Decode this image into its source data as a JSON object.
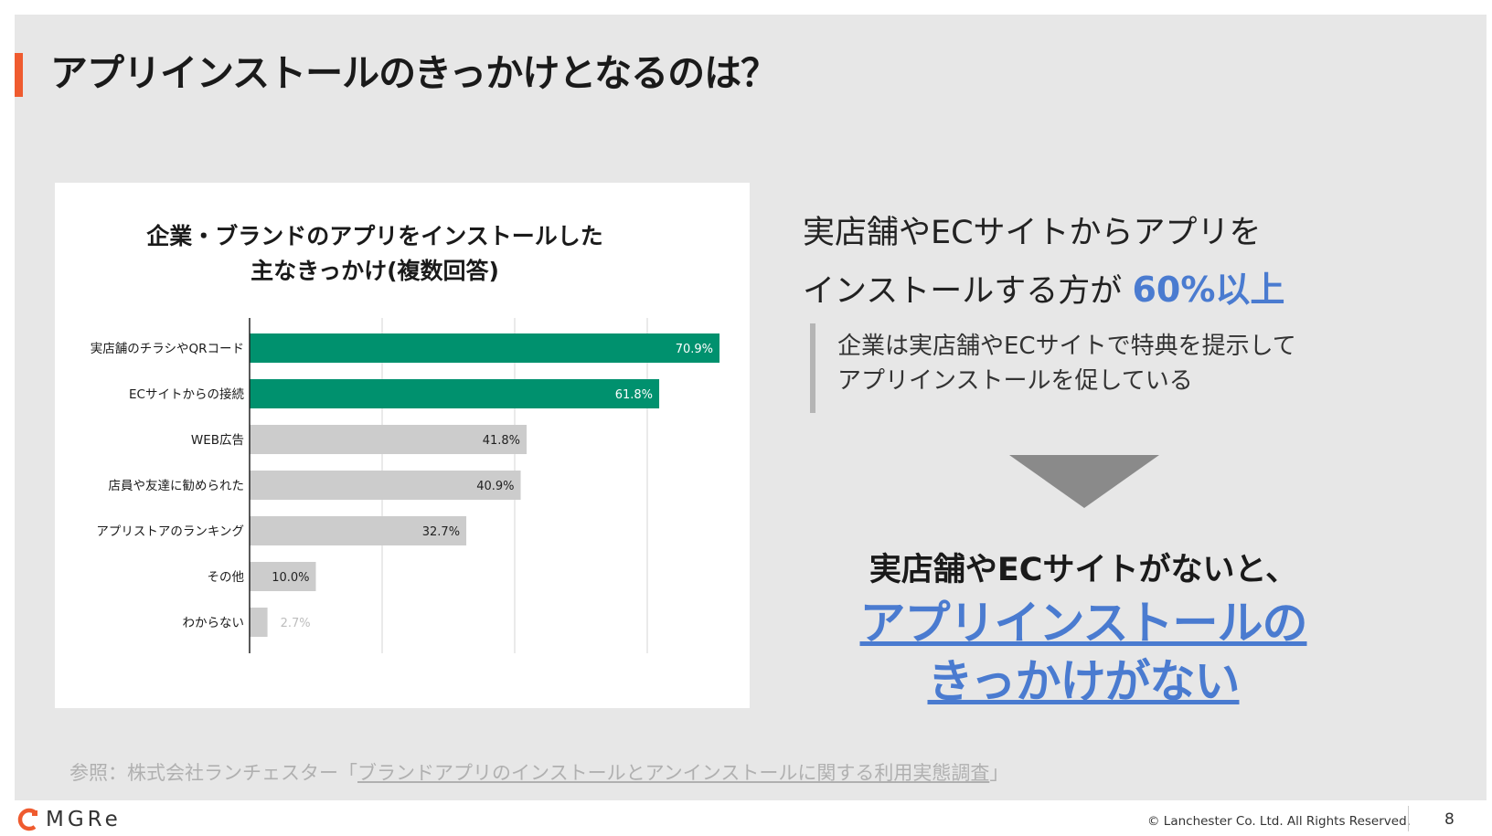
{
  "title": "アプリインストールのきっかけとなるのは？",
  "chart_data": {
    "type": "bar",
    "orientation": "horizontal",
    "title_line1": "企業・ブランドのアプリをインストールした",
    "title_line2": "主なきっかけ(複数回答)",
    "categories": [
      "実店舗のチラシやQRコード",
      "ECサイトからの接続",
      "WEB広告",
      "店員や友達に勧められた",
      "アプリストアのランキング",
      "その他",
      "わからない"
    ],
    "values": [
      70.9,
      61.8,
      41.8,
      40.9,
      32.7,
      10.0,
      2.7
    ],
    "labels": [
      "70.9%",
      "61.8%",
      "41.8%",
      "40.9%",
      "32.7%",
      "10.0%",
      "2.7%"
    ],
    "highlight": [
      true,
      true,
      false,
      false,
      false,
      false,
      false
    ],
    "xlim": [
      0,
      80
    ],
    "grid": true,
    "colors": {
      "highlight": "#00916e",
      "normal": "#cccccc"
    }
  },
  "headline": {
    "line1": "実店舗やECサイトからアプリを",
    "line2_prefix": "インストールする方が ",
    "line2_highlight": "60%以上"
  },
  "quote": {
    "line1": "企業は実店舗やECサイトで特典を提示して",
    "line2": "アプリインストールを促している"
  },
  "conclusion": {
    "line1": "実店舗やECサイトがないと、",
    "line2": "アプリインストールの",
    "line3": "きっかけがない"
  },
  "reference": {
    "prefix": "参照：株式会社ランチェスター「",
    "link": "ブランドアプリのインストールとアンインストールに関する利用実態調査",
    "suffix": "」"
  },
  "footer": {
    "logo": "MGRe",
    "copyright": "© Lanchester Co. Ltd. All Rights Reserved.",
    "page": "8"
  },
  "colors": {
    "accent": "#ef5b2f",
    "blue": "#4a7bd0",
    "arrow": "#8a8a8a"
  }
}
